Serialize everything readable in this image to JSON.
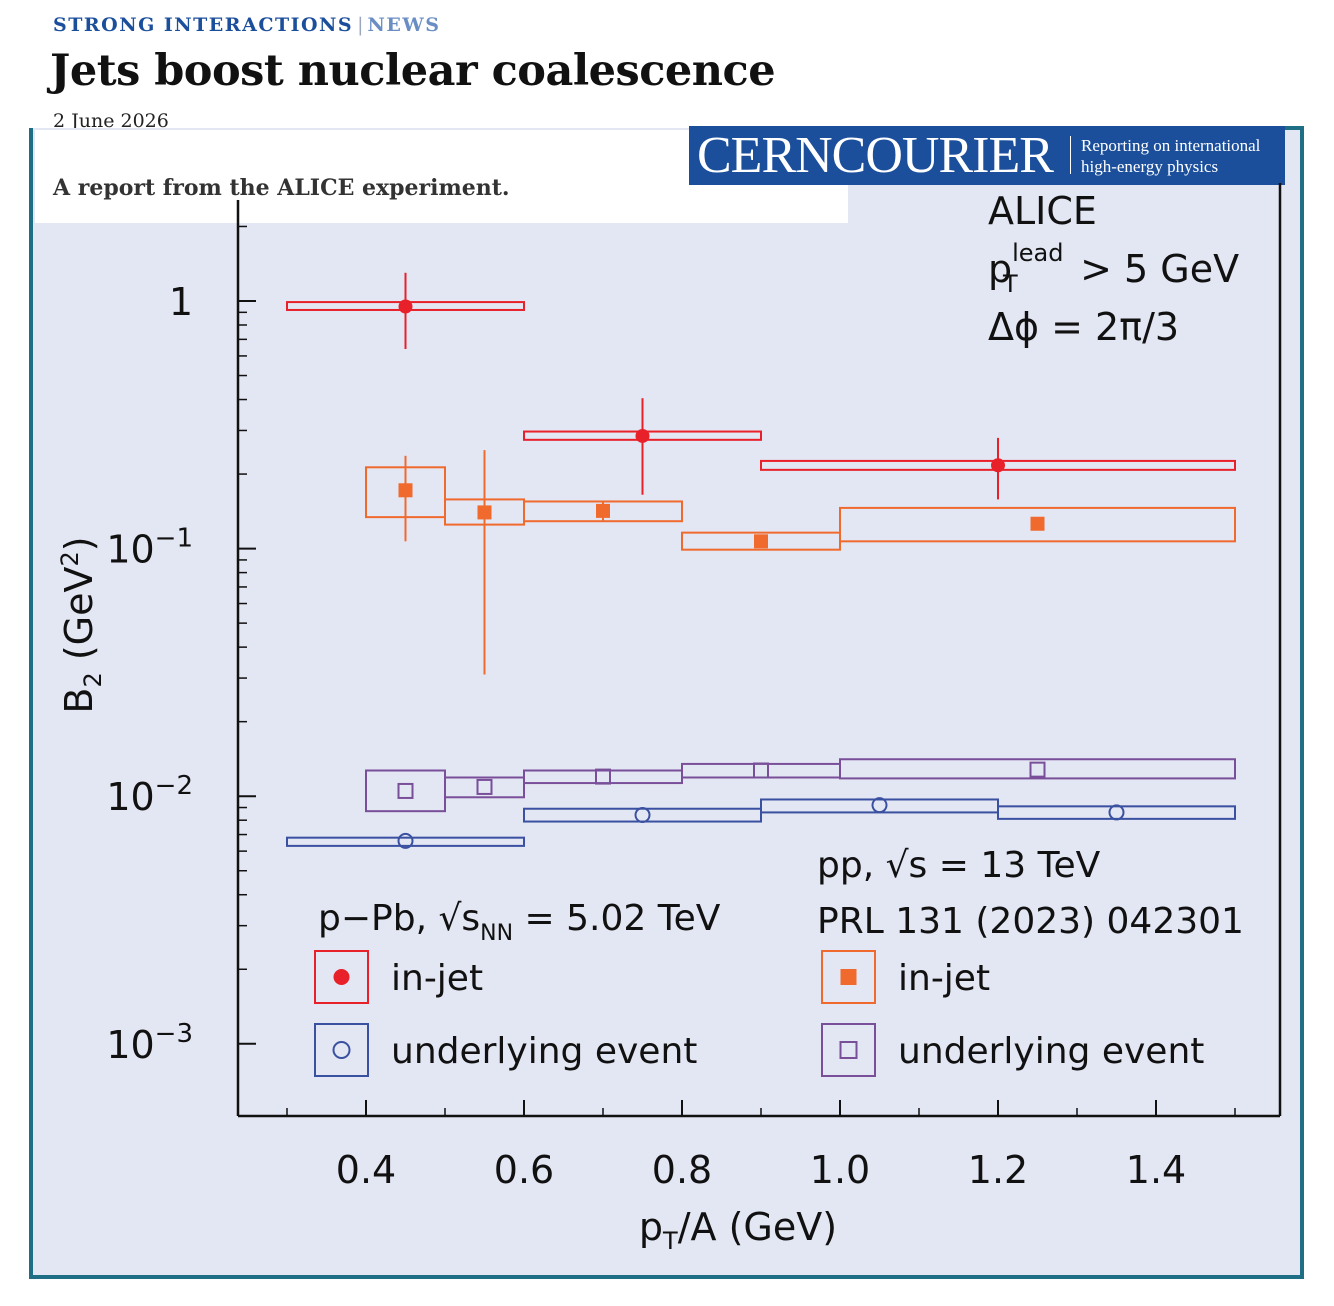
{
  "header": {
    "kicker": "STRONG INTERACTIONS",
    "separator": "|",
    "section": "NEWS",
    "title": "Jets boost nuclear coalescence",
    "date": "2 June 2026",
    "standfirst": "A report from the ALICE experiment."
  },
  "logo": {
    "wordmark": "CERNCOURIER",
    "tagline_line1": "Reporting on international",
    "tagline_line2": "high-energy physics"
  },
  "colors": {
    "brand": "#1b4f9c",
    "frame": "#1e6f85",
    "plot_background": "#e3e6f3",
    "pPb_injet": "#e8202a",
    "pp_injet": "#f06a2e",
    "pPb_ue": "#3a50a0",
    "pp_ue": "#7a4f9a"
  },
  "chart_data": {
    "type": "scatter",
    "xlabel": "p_T/A (GeV)",
    "ylabel": "B_2 (GeV^2)",
    "xlim": [
      0.2,
      1.58
    ],
    "ylim": [
      0.00065,
      2.1
    ],
    "yscale": "log",
    "x_ticks": [
      0.4,
      0.6,
      0.8,
      1.0,
      1.2,
      1.4
    ],
    "x_tick_labels": [
      "0.4",
      "0.6",
      "0.8",
      "1.0",
      "1.2",
      "1.4"
    ],
    "y_ticks": [
      {
        "value": 1,
        "base": "1",
        "exp": ""
      },
      {
        "value": 0.1,
        "base": "10",
        "exp": "−1"
      },
      {
        "value": 0.01,
        "base": "10",
        "exp": "−2"
      },
      {
        "value": 0.001,
        "base": "10",
        "exp": "−3"
      }
    ],
    "annotations": {
      "experiment": "ALICE",
      "cut_p": "p",
      "cut_sup": "lead",
      "cut_sub": "T",
      "cut_rest": "> 5 GeV",
      "dphi": "Δϕ = 2π/3",
      "pp_system": "pp, √s = 13 TeV",
      "pp_ref": "PRL 131 (2023) 042301",
      "pPb_system_pre": "p−Pb, √s",
      "pPb_system_sub": "NN",
      "pPb_system_post": " = 5.02 TeV"
    },
    "legend": {
      "pPb_injet": "in-jet",
      "pPb_ue": "underlying event",
      "pp_injet": "in-jet",
      "pp_ue": "underlying event"
    },
    "series": [
      {
        "name": "p−Pb in-jet",
        "key": "pPb_injet",
        "marker": "circle-filled",
        "points": [
          {
            "x": 0.45,
            "y": 0.95,
            "stat_lo": 0.64,
            "stat_hi": 1.3,
            "xlo": 0.3,
            "xhi": 0.6,
            "syst_lo": 0.92,
            "syst_hi": 0.99
          },
          {
            "x": 0.75,
            "y": 0.285,
            "stat_lo": 0.165,
            "stat_hi": 0.405,
            "xlo": 0.6,
            "xhi": 0.9,
            "syst_lo": 0.275,
            "syst_hi": 0.297
          },
          {
            "x": 1.2,
            "y": 0.217,
            "stat_lo": 0.158,
            "stat_hi": 0.28,
            "xlo": 0.9,
            "xhi": 1.5,
            "syst_lo": 0.208,
            "syst_hi": 0.226
          }
        ]
      },
      {
        "name": "pp in-jet",
        "key": "pp_injet",
        "marker": "square-filled",
        "points": [
          {
            "x": 0.45,
            "y": 0.172,
            "stat_lo": 0.107,
            "stat_hi": 0.237,
            "xlo": 0.4,
            "xhi": 0.5,
            "syst_lo": 0.134,
            "syst_hi": 0.213
          },
          {
            "x": 0.55,
            "y": 0.14,
            "stat_lo": 0.031,
            "stat_hi": 0.25,
            "xlo": 0.5,
            "xhi": 0.6,
            "syst_lo": 0.125,
            "syst_hi": 0.158
          },
          {
            "x": 0.7,
            "y": 0.142,
            "stat_lo": 0.13,
            "stat_hi": 0.155,
            "xlo": 0.6,
            "xhi": 0.8,
            "syst_lo": 0.129,
            "syst_hi": 0.155
          },
          {
            "x": 0.9,
            "y": 0.107,
            "stat_lo": 0.102,
            "stat_hi": 0.112,
            "xlo": 0.8,
            "xhi": 1.0,
            "syst_lo": 0.099,
            "syst_hi": 0.116
          },
          {
            "x": 1.25,
            "y": 0.126,
            "stat_lo": 0.121,
            "stat_hi": 0.131,
            "xlo": 1.0,
            "xhi": 1.5,
            "syst_lo": 0.107,
            "syst_hi": 0.146
          }
        ]
      },
      {
        "name": "pp underlying event",
        "key": "pp_ue",
        "marker": "square-open",
        "points": [
          {
            "x": 0.45,
            "y": 0.0105,
            "xlo": 0.4,
            "xhi": 0.5,
            "syst_lo": 0.0087,
            "syst_hi": 0.0127
          },
          {
            "x": 0.55,
            "y": 0.0109,
            "xlo": 0.5,
            "xhi": 0.6,
            "syst_lo": 0.0099,
            "syst_hi": 0.0119
          },
          {
            "x": 0.7,
            "y": 0.012,
            "xlo": 0.6,
            "xhi": 0.8,
            "syst_lo": 0.0113,
            "syst_hi": 0.0127
          },
          {
            "x": 0.9,
            "y": 0.0127,
            "xlo": 0.8,
            "xhi": 1.0,
            "syst_lo": 0.0119,
            "syst_hi": 0.0135
          },
          {
            "x": 1.25,
            "y": 0.0128,
            "xlo": 1.0,
            "xhi": 1.5,
            "syst_lo": 0.0118,
            "syst_hi": 0.0141
          }
        ]
      },
      {
        "name": "p−Pb underlying event",
        "key": "pPb_ue",
        "marker": "circle-open",
        "points": [
          {
            "x": 0.45,
            "y": 0.0066,
            "xlo": 0.3,
            "xhi": 0.6,
            "syst_lo": 0.0063,
            "syst_hi": 0.0068
          },
          {
            "x": 0.75,
            "y": 0.0084,
            "xlo": 0.6,
            "xhi": 0.9,
            "syst_lo": 0.0079,
            "syst_hi": 0.0089
          },
          {
            "x": 1.05,
            "y": 0.0092,
            "xlo": 0.9,
            "xhi": 1.2,
            "syst_lo": 0.0086,
            "syst_hi": 0.0097
          },
          {
            "x": 1.35,
            "y": 0.0086,
            "xlo": 1.2,
            "xhi": 1.5,
            "syst_lo": 0.0081,
            "syst_hi": 0.0091
          }
        ]
      }
    ]
  }
}
